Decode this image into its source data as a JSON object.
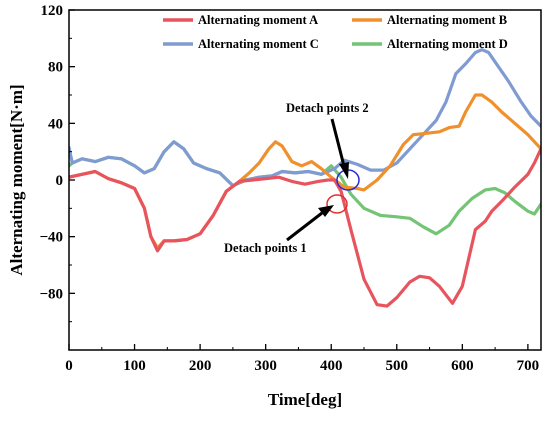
{
  "chart_data": {
    "type": "line",
    "xlabel": "Time[deg]",
    "ylabel": "Alternating moment[N·m]",
    "xlim": [
      0,
      720
    ],
    "ylim": [
      -120,
      120
    ],
    "x_ticks": [
      0,
      100,
      200,
      300,
      400,
      500,
      600,
      700
    ],
    "y_ticks": [
      -80,
      -40,
      0,
      40,
      80,
      120
    ],
    "grid": false,
    "legend_position": "top",
    "series": [
      {
        "name": "Alternating moment A",
        "color": "#e8545e",
        "points": [
          [
            0,
            2
          ],
          [
            20,
            4
          ],
          [
            40,
            6
          ],
          [
            60,
            1
          ],
          [
            80,
            -2
          ],
          [
            100,
            -6
          ],
          [
            115,
            -20
          ],
          [
            125,
            -40
          ],
          [
            135,
            -50
          ],
          [
            145,
            -43
          ],
          [
            160,
            -43
          ],
          [
            180,
            -42
          ],
          [
            200,
            -38
          ],
          [
            220,
            -25
          ],
          [
            240,
            -8
          ],
          [
            260,
            -1
          ],
          [
            280,
            0
          ],
          [
            300,
            1
          ],
          [
            320,
            2
          ],
          [
            340,
            -1
          ],
          [
            360,
            -3
          ],
          [
            380,
            -1
          ],
          [
            395,
            0
          ],
          [
            405,
            0
          ],
          [
            415,
            -8
          ],
          [
            430,
            -35
          ],
          [
            450,
            -70
          ],
          [
            470,
            -88
          ],
          [
            485,
            -89
          ],
          [
            500,
            -83
          ],
          [
            520,
            -72
          ],
          [
            535,
            -68
          ],
          [
            550,
            -69
          ],
          [
            565,
            -75
          ],
          [
            585,
            -87
          ],
          [
            600,
            -75
          ],
          [
            620,
            -35
          ],
          [
            635,
            -29
          ],
          [
            645,
            -22
          ],
          [
            660,
            -15
          ],
          [
            680,
            -5
          ],
          [
            700,
            4
          ],
          [
            710,
            12
          ],
          [
            720,
            22
          ]
        ]
      },
      {
        "name": "Alternating moment B",
        "color": "#f0902c",
        "points": [
          [
            0,
            2
          ],
          [
            20,
            4
          ],
          [
            40,
            6
          ],
          [
            60,
            1
          ],
          [
            80,
            -2
          ],
          [
            100,
            -6
          ],
          [
            115,
            -20
          ],
          [
            125,
            -40
          ],
          [
            135,
            -48
          ],
          [
            145,
            -43
          ],
          [
            160,
            -43
          ],
          [
            180,
            -42
          ],
          [
            200,
            -38
          ],
          [
            220,
            -25
          ],
          [
            240,
            -8
          ],
          [
            260,
            -1
          ],
          [
            275,
            5
          ],
          [
            290,
            12
          ],
          [
            305,
            22
          ],
          [
            315,
            27
          ],
          [
            325,
            24
          ],
          [
            340,
            13
          ],
          [
            355,
            10
          ],
          [
            370,
            13
          ],
          [
            385,
            8
          ],
          [
            400,
            2
          ],
          [
            420,
            -5
          ],
          [
            440,
            -6
          ],
          [
            450,
            -7
          ],
          [
            470,
            0
          ],
          [
            490,
            10
          ],
          [
            510,
            25
          ],
          [
            525,
            32
          ],
          [
            545,
            33
          ],
          [
            565,
            34
          ],
          [
            580,
            37
          ],
          [
            595,
            38
          ],
          [
            605,
            48
          ],
          [
            620,
            60
          ],
          [
            630,
            60
          ],
          [
            645,
            55
          ],
          [
            660,
            48
          ],
          [
            680,
            40
          ],
          [
            700,
            32
          ],
          [
            720,
            22
          ]
        ]
      },
      {
        "name": "Alternating moment C",
        "color": "#7f9bd2",
        "points": [
          [
            0,
            23
          ],
          [
            5,
            12
          ],
          [
            20,
            15
          ],
          [
            40,
            13
          ],
          [
            60,
            16
          ],
          [
            80,
            15
          ],
          [
            100,
            10
          ],
          [
            115,
            5
          ],
          [
            130,
            8
          ],
          [
            145,
            20
          ],
          [
            160,
            27
          ],
          [
            175,
            22
          ],
          [
            190,
            12
          ],
          [
            210,
            8
          ],
          [
            230,
            5
          ],
          [
            250,
            -4
          ],
          [
            270,
            0
          ],
          [
            290,
            2
          ],
          [
            310,
            3
          ],
          [
            325,
            6
          ],
          [
            345,
            5
          ],
          [
            365,
            6
          ],
          [
            385,
            4
          ],
          [
            405,
            8
          ],
          [
            420,
            14
          ],
          [
            440,
            11
          ],
          [
            460,
            7
          ],
          [
            480,
            7
          ],
          [
            500,
            12
          ],
          [
            520,
            22
          ],
          [
            540,
            32
          ],
          [
            560,
            42
          ],
          [
            575,
            55
          ],
          [
            590,
            75
          ],
          [
            605,
            82
          ],
          [
            620,
            90
          ],
          [
            630,
            92
          ],
          [
            640,
            90
          ],
          [
            655,
            80
          ],
          [
            670,
            70
          ],
          [
            690,
            55
          ],
          [
            705,
            45
          ],
          [
            720,
            38
          ]
        ]
      },
      {
        "name": "Alternating moment D",
        "color": "#74c476",
        "points": [
          [
            0,
            10
          ],
          [
            5,
            12
          ],
          [
            20,
            15
          ],
          [
            40,
            13
          ],
          [
            60,
            16
          ],
          [
            80,
            15
          ],
          [
            100,
            10
          ],
          [
            115,
            5
          ],
          [
            130,
            8
          ],
          [
            145,
            20
          ],
          [
            160,
            27
          ],
          [
            175,
            22
          ],
          [
            190,
            12
          ],
          [
            210,
            8
          ],
          [
            230,
            5
          ],
          [
            250,
            -4
          ],
          [
            270,
            0
          ],
          [
            290,
            2
          ],
          [
            310,
            3
          ],
          [
            325,
            6
          ],
          [
            345,
            5
          ],
          [
            365,
            6
          ],
          [
            385,
            4
          ],
          [
            400,
            10
          ],
          [
            415,
            2
          ],
          [
            430,
            -10
          ],
          [
            450,
            -20
          ],
          [
            475,
            -25
          ],
          [
            500,
            -26
          ],
          [
            520,
            -27
          ],
          [
            540,
            -33
          ],
          [
            560,
            -38
          ],
          [
            580,
            -32
          ],
          [
            595,
            -22
          ],
          [
            615,
            -13
          ],
          [
            635,
            -7
          ],
          [
            650,
            -6
          ],
          [
            665,
            -9
          ],
          [
            680,
            -15
          ],
          [
            700,
            -22
          ],
          [
            710,
            -24
          ],
          [
            720,
            -17
          ]
        ]
      }
    ],
    "annotations": [
      {
        "text": "Detach points 2",
        "x": 420,
        "y": 14
      },
      {
        "text": "Detach points 1",
        "x": 405,
        "y": 0
      }
    ]
  }
}
